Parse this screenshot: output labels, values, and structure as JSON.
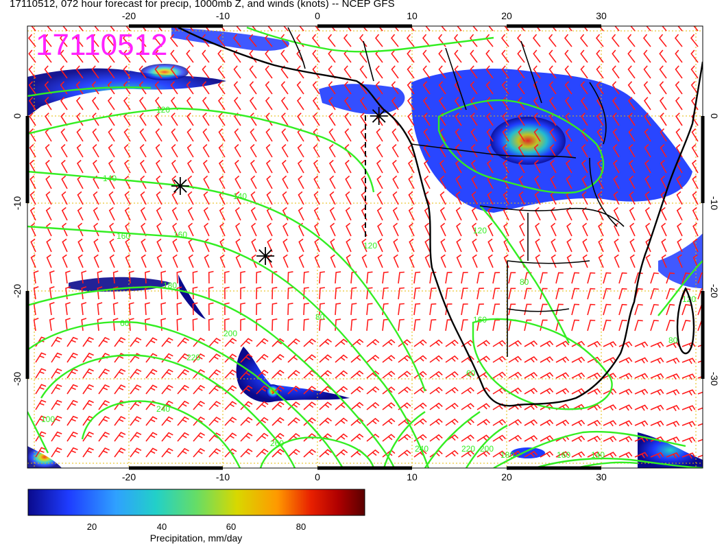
{
  "title": "17110512, 072 hour forecast for precip, 1000mb Z, and winds (knots) -- NCEP GFS",
  "stamp": "17110512",
  "map": {
    "lon_min": -30,
    "lon_max": 40,
    "lat_min": -40,
    "lat_max": 10,
    "lon_ticks": [
      "-20",
      "-10",
      "0",
      "10",
      "20",
      "30"
    ],
    "lat_ticks": [
      "0",
      "-10",
      "-20",
      "-30"
    ],
    "contour_labels": [
      "120",
      "140",
      "140",
      "160",
      "160",
      "180",
      "200",
      "220",
      "240",
      "260",
      "240",
      "220",
      "200",
      "180",
      "160",
      "140",
      "120",
      "80",
      "60",
      "80",
      "160",
      "120",
      "120",
      "80",
      "60",
      "100"
    ],
    "markers": [
      {
        "name": "asterisk-marker",
        "lon": -14.5,
        "lat": -8
      },
      {
        "name": "asterisk-marker",
        "lon": -5.5,
        "lat": -16
      },
      {
        "name": "asterisk-marker",
        "lon": 6.5,
        "lat": 0
      }
    ],
    "colors": {
      "wind_barb": "#ff1a1a",
      "contour": "#33ee22",
      "coast": "#000000",
      "grid": "#e6b800",
      "stamp": "#ff22ff"
    }
  },
  "colorbar": {
    "label": "Precipitation, mm/day",
    "ticks": [
      "20",
      "40",
      "60",
      "80"
    ],
    "range": [
      0,
      100
    ],
    "colors": [
      "#0a0a8c",
      "#1e3cff",
      "#2fa0ff",
      "#22d0c8",
      "#66dd66",
      "#d8d800",
      "#ff9900",
      "#e82000",
      "#b00000",
      "#5a0000"
    ]
  }
}
